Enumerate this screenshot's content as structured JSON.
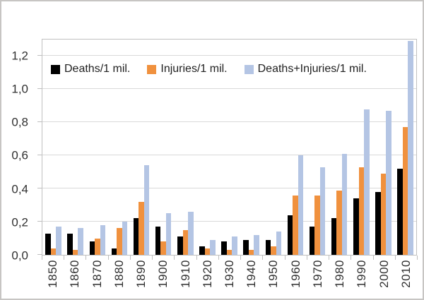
{
  "frame": {
    "background": "#ffffff",
    "outer_border_color": "#c7c5c3",
    "plot_border_color": "#c0c0c0",
    "gridline_color": "#d9d9d9",
    "tick_color": "#bfbfbf",
    "text_color": "#303030"
  },
  "chart_data": {
    "type": "bar",
    "title": "",
    "xlabel": "",
    "ylabel": "",
    "grid": true,
    "legend_position": "top-inside",
    "ylim": [
      0,
      1.3
    ],
    "yticks": [
      "0,0",
      "0,2",
      "0,4",
      "0,6",
      "0,8",
      "1,0",
      "1,2"
    ],
    "ytick_values": [
      0,
      0.2,
      0.4,
      0.6,
      0.8,
      1.0,
      1.2
    ],
    "categories": [
      "1850",
      "1860",
      "1870",
      "1880",
      "1890",
      "1900",
      "1910",
      "1920",
      "1930",
      "1940",
      "1950",
      "1960",
      "1970",
      "1980",
      "1990",
      "2000",
      "2010"
    ],
    "series": [
      {
        "name": "Deaths/1 mil.",
        "color": "#000000",
        "values": [
          0.13,
          0.13,
          0.08,
          0.04,
          0.22,
          0.17,
          0.11,
          0.05,
          0.08,
          0.09,
          0.09,
          0.24,
          0.17,
          0.22,
          0.34,
          0.38,
          0.52
        ]
      },
      {
        "name": "Injuries/1 mil.",
        "color": "#f0913e",
        "values": [
          0.04,
          0.03,
          0.1,
          0.16,
          0.32,
          0.08,
          0.15,
          0.04,
          0.03,
          0.03,
          0.05,
          0.36,
          0.36,
          0.39,
          0.53,
          0.49,
          0.77
        ]
      },
      {
        "name": "Deaths+Injuries/1 mil.",
        "color": "#b4c5e4",
        "values": [
          0.17,
          0.16,
          0.18,
          0.2,
          0.54,
          0.25,
          0.26,
          0.09,
          0.11,
          0.12,
          0.14,
          0.6,
          0.53,
          0.61,
          0.88,
          0.87,
          1.29
        ]
      }
    ]
  }
}
